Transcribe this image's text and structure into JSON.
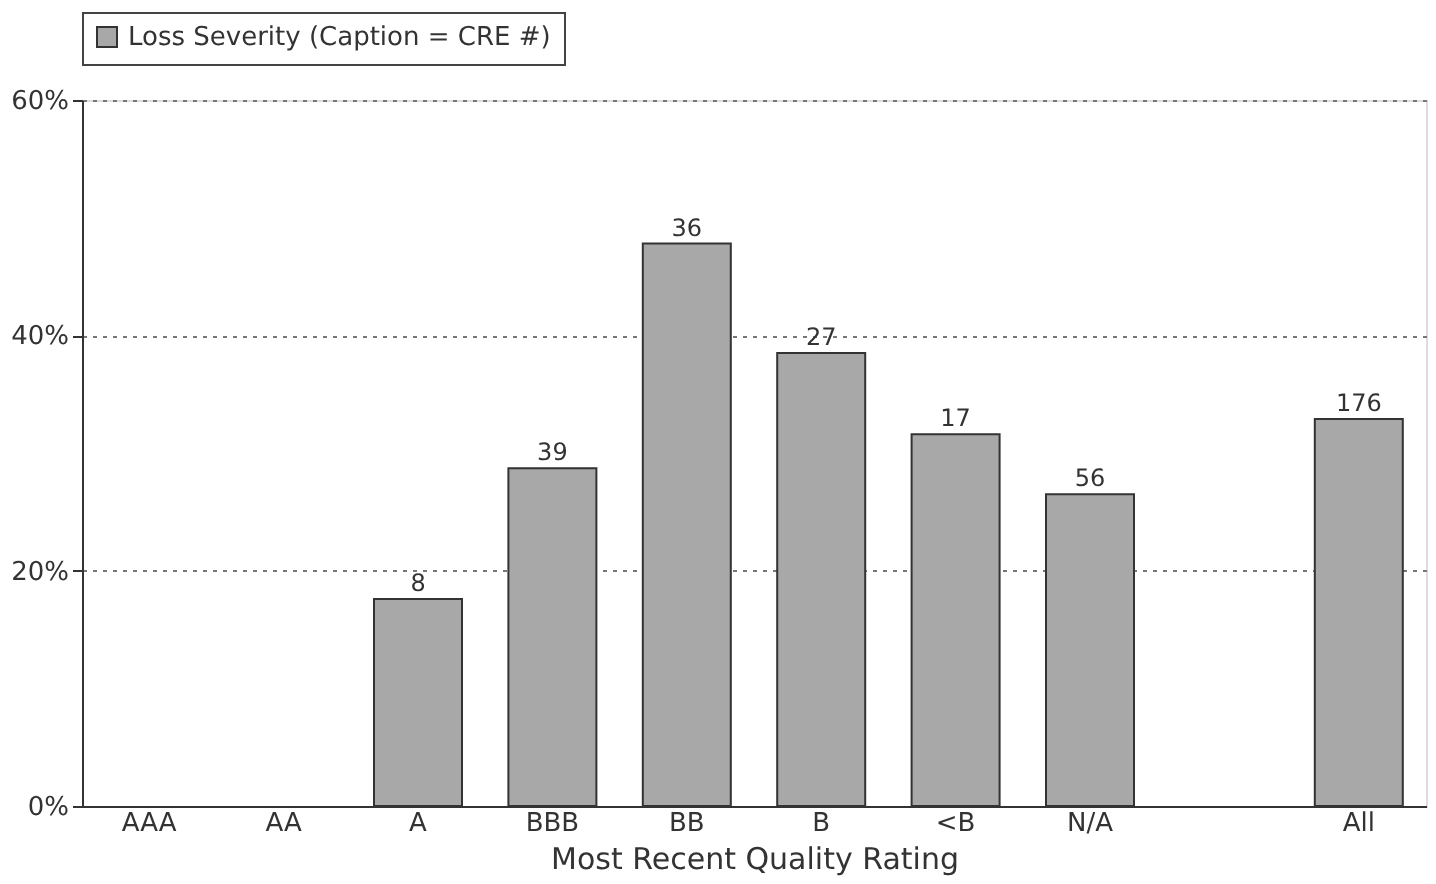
{
  "chart_data": {
    "type": "bar",
    "xlabel": "Most Recent Quality Rating",
    "categories": [
      "AAA",
      "AA",
      "A",
      "BBB",
      "BB",
      "B",
      "<B",
      "N/A",
      null,
      "All"
    ],
    "series": [
      {
        "name": "Loss Severity (Caption = CRE #)",
        "color": "#a8a8a8",
        "values": [
          null,
          null,
          17.6,
          28.7,
          47.8,
          38.5,
          31.6,
          26.5,
          null,
          32.9
        ]
      }
    ],
    "annotations": [
      {
        "text": "8",
        "x": "A",
        "y": 17.6
      },
      {
        "text": "39",
        "x": "BBB",
        "y": 28.7
      },
      {
        "text": "36",
        "x": "BB",
        "y": 47.8
      },
      {
        "text": "27",
        "x": "B",
        "y": 38.5
      },
      {
        "text": "17",
        "x": "<B",
        "y": 31.6
      },
      {
        "text": "56",
        "x": "N/A",
        "y": 26.5
      },
      {
        "text": "176",
        "x": "All",
        "y": 32.9
      }
    ],
    "ylim": [
      0,
      60
    ],
    "yticks": [
      {
        "value": 0,
        "label": "0%"
      },
      {
        "value": 20,
        "label": "20%"
      },
      {
        "value": 40,
        "label": "40%"
      },
      {
        "value": 60,
        "label": "60%"
      }
    ],
    "grid": "y",
    "legend": "top"
  }
}
